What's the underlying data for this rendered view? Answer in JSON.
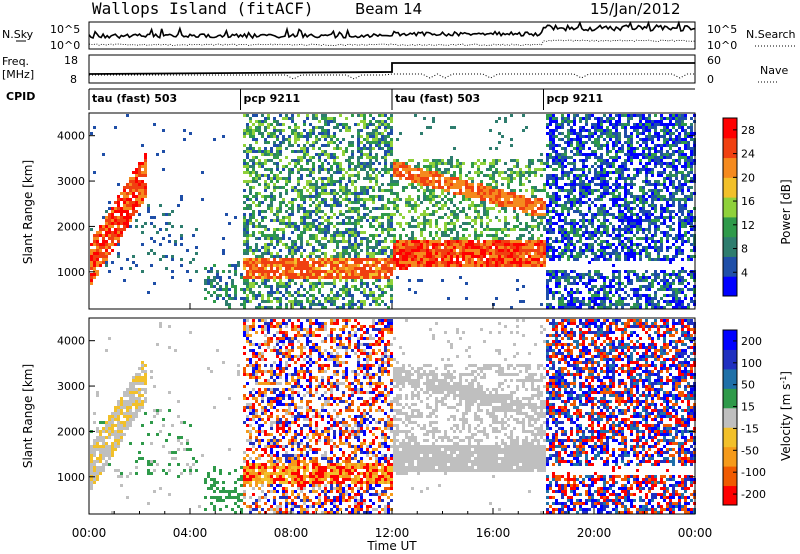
{
  "header": {
    "station": "Wallops Island (fitACF)",
    "beam": "Beam 14",
    "date": "15/Jan/2012"
  },
  "noise_panel": {
    "left_label": "N.Sky",
    "left_tick_top": "10^5",
    "left_tick_bottom": "10^0",
    "right_tick_top": "10^5",
    "right_tick_bottom": "10^0",
    "right_label": "N.Search"
  },
  "freq_panel": {
    "left_label_1": "Freq.",
    "left_label_2": "[MHz]",
    "left_tick_top": "18",
    "left_tick_bottom": "8",
    "right_tick_top": "60",
    "right_tick_bottom": "0",
    "right_label": "Nave"
  },
  "cpid_panel": {
    "label": "CPID",
    "segments": [
      {
        "label": "tau (fast) 503",
        "start_hour": 0,
        "end_hour": 6
      },
      {
        "label": "pcp 9211",
        "start_hour": 6,
        "end_hour": 12
      },
      {
        "label": "tau (fast) 503",
        "start_hour": 12,
        "end_hour": 18
      },
      {
        "label": "pcp 9211",
        "start_hour": 18,
        "end_hour": 24
      }
    ]
  },
  "colors": {
    "power_scale": [
      "#0000ff",
      "#1f4fa8",
      "#2e7d6e",
      "#2f9a4a",
      "#8fd13a",
      "#f2c02a",
      "#f58a1e",
      "#f04010",
      "#ff0000"
    ],
    "velocity_scale": [
      "#ff0000",
      "#f05a00",
      "#f59a1a",
      "#f2c02a",
      "#bfbfbf",
      "#2f9a4a",
      "#1f70a8",
      "#2030c0",
      "#0000ff"
    ]
  },
  "chart_data": [
    {
      "type": "line",
      "title": "",
      "ylabel": "N.Sky",
      "y2label": "N.Search",
      "yscale": "log",
      "ylim": [
        1,
        100000
      ],
      "x": [
        0,
        6,
        12,
        18,
        24
      ],
      "series": []
    },
    {
      "type": "line",
      "ylabel": "Freq. [MHz]",
      "y2label": "Nave",
      "ylim": [
        8,
        18
      ],
      "y2lim": [
        0,
        60
      ],
      "series": []
    },
    {
      "type": "heatmap",
      "title": "Power [dB]",
      "xlabel": "",
      "ylabel": "Slant Range [km]",
      "xlim": [
        0,
        24
      ],
      "ylim": [
        180,
        4500
      ],
      "yticks": [
        1000,
        2000,
        3000,
        4000
      ],
      "yticklabels": [
        "1000",
        "2000",
        "3000",
        "4000"
      ],
      "colorbar_label": "Power [dB]",
      "colorbar_ticks": [
        "4",
        "8",
        "12",
        "16",
        "20",
        "24",
        "28"
      ],
      "colorbar_range": [
        0,
        30
      ]
    },
    {
      "type": "heatmap",
      "title": "Velocity [m s^-1]",
      "xlabel": "Time UT",
      "ylabel": "Slant Range [km]",
      "xlim": [
        0,
        24
      ],
      "ylim": [
        180,
        4500
      ],
      "yticks": [
        1000,
        2000,
        3000,
        4000
      ],
      "yticklabels": [
        "1000",
        "2000",
        "3000",
        "4000"
      ],
      "xticks": [
        0,
        4,
        8,
        12,
        16,
        20,
        24
      ],
      "xticklabels": [
        "00:00",
        "04:00",
        "08:00",
        "12:00",
        "16:00",
        "20:00",
        "00:00"
      ],
      "colorbar_label": "Velocity [m s",
      "colorbar_label_sup": "-1",
      "colorbar_label_end": "]",
      "colorbar_ticks": [
        "200",
        "100",
        "50",
        "15",
        "-15",
        "-50",
        "-100",
        "-200"
      ]
    }
  ]
}
